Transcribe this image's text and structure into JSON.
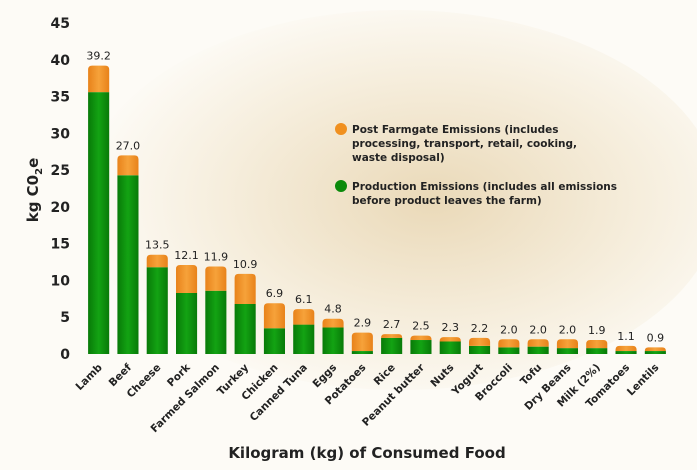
{
  "chart_data": {
    "type": "bar",
    "stacked": true,
    "categories": [
      "Lamb",
      "Beef",
      "Cheese",
      "Pork",
      "Farmed Salmon",
      "Turkey",
      "Chicken",
      "Canned Tuna",
      "Eggs",
      "Potatoes",
      "Rice",
      "Peanut butter",
      "Nuts",
      "Yogurt",
      "Broccoli",
      "Tofu",
      "Dry Beans",
      "Milk (2%)",
      "Tomatoes",
      "Lentils"
    ],
    "totals": [
      39.2,
      27.0,
      13.5,
      12.1,
      11.9,
      10.9,
      6.9,
      6.1,
      4.8,
      2.9,
      2.7,
      2.5,
      2.3,
      2.2,
      2.0,
      2.0,
      2.0,
      1.9,
      1.1,
      0.9
    ],
    "total_labels": [
      "39.2",
      "27.0",
      "13.5",
      "12.1",
      "11.9",
      "10.9",
      "6.9",
      "6.1",
      "4.8",
      "2.9",
      "2.7",
      "2.5",
      "2.3",
      "2.2",
      "2.0",
      "2.0",
      "2.0",
      "1.9",
      "1.1",
      "0.9"
    ],
    "series": [
      {
        "name": "Production Emissions (includes all emissions before product leaves the farm)",
        "name_lines": [
          "Production Emissions (includes all emissions",
          "before product leaves the farm)"
        ],
        "color": "#0b8a0b",
        "values": [
          35.6,
          24.3,
          11.8,
          8.3,
          8.6,
          6.8,
          3.5,
          4.0,
          3.6,
          0.4,
          2.2,
          1.9,
          1.7,
          1.1,
          0.9,
          1.0,
          0.8,
          0.8,
          0.4,
          0.4
        ]
      },
      {
        "name": "Post Farmgate Emissions (includes processing, transport, retail, cooking, waste disposal)",
        "name_lines": [
          "Post Farmgate Emissions (includes",
          "processing, transport, retail, cooking,",
          "waste disposal)"
        ],
        "color": "#f0901f",
        "values": [
          3.6,
          2.7,
          1.7,
          3.8,
          3.3,
          4.1,
          3.4,
          2.1,
          1.2,
          2.5,
          0.5,
          0.6,
          0.6,
          1.1,
          1.1,
          1.0,
          1.2,
          1.1,
          0.7,
          0.5
        ]
      }
    ],
    "xlabel": "Kilogram (kg) of Consumed Food",
    "ylabel_main": "kg C0",
    "ylabel_sub": "2",
    "ylabel_end": "e",
    "ylim": [
      0,
      45
    ],
    "yticks": [
      0,
      5,
      10,
      15,
      20,
      25,
      30,
      35,
      40,
      45
    ],
    "grid": false,
    "legend_position": "right"
  }
}
